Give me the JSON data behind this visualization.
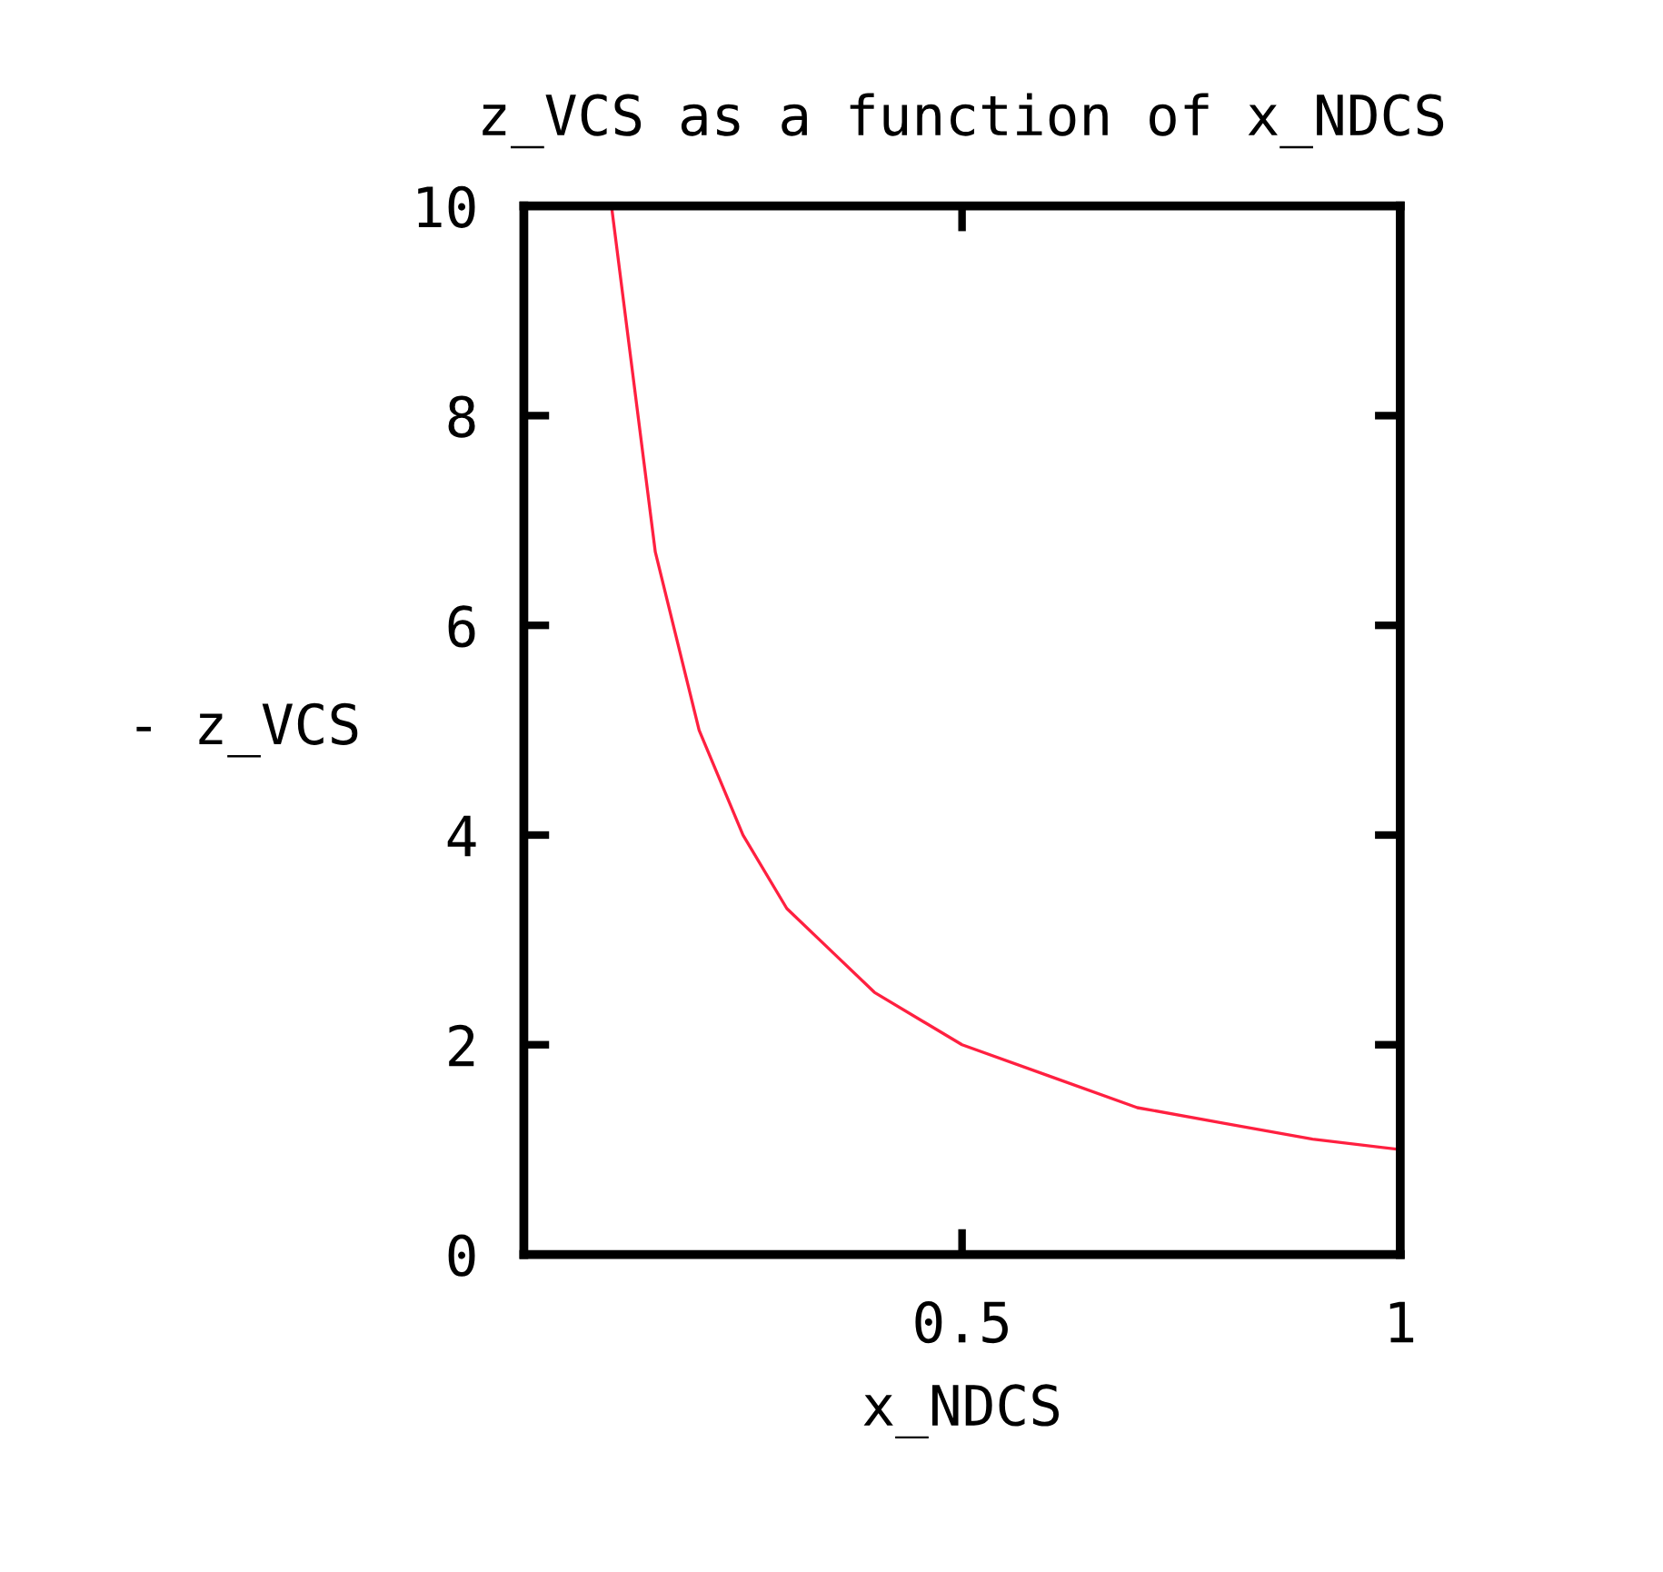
{
  "chart_data": {
    "type": "line",
    "title": "z_VCS as a function of x_NDCS",
    "xlabel": "x_NDCS",
    "ylabel": "- z_VCS",
    "x": [
      0.1,
      0.15,
      0.2,
      0.25,
      0.3,
      0.35,
      0.4,
      0.5,
      0.6,
      0.7,
      0.8,
      0.9,
      1.0
    ],
    "values": [
      10,
      6.7,
      5,
      4,
      3.3,
      2.9,
      2.5,
      2,
      1.7,
      1.4,
      1.25,
      1.1,
      1
    ],
    "color": "#ff2040",
    "xlim": [
      0,
      1
    ],
    "xticks": [
      0.5,
      1
    ],
    "ylim": [
      0,
      10
    ],
    "yticks": [
      0,
      2,
      4,
      6,
      8,
      10
    ],
    "grid": false,
    "legend": false,
    "marker": "none",
    "line_style": "solid"
  }
}
